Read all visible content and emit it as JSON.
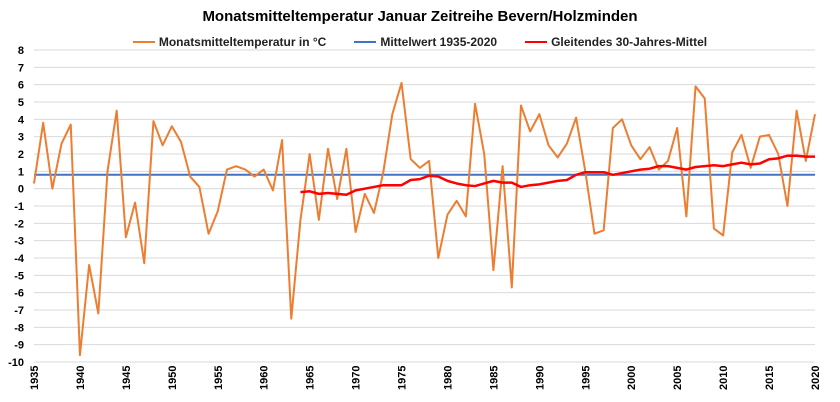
{
  "chart_data": {
    "type": "line",
    "title": "Monatsmitteltemperatur Januar Zeitreihe Bevern/Holzminden",
    "xlabel": "",
    "ylabel": "",
    "ylim": [
      -10,
      8
    ],
    "xlim": [
      1935,
      2020
    ],
    "grid": true,
    "legend_placement": "top",
    "x_ticks": [
      1935,
      1940,
      1945,
      1950,
      1955,
      1960,
      1965,
      1970,
      1975,
      1980,
      1985,
      1990,
      1995,
      2000,
      2005,
      2010,
      2015,
      2020
    ],
    "y_ticks": [
      -10,
      -9,
      -8,
      -7,
      -6,
      -5,
      -4,
      -3,
      -2,
      -1,
      0,
      1,
      2,
      3,
      4,
      5,
      6,
      7,
      8
    ],
    "series": [
      {
        "name": "Monatsmitteltemperatur in °C",
        "color": "#ED7D31",
        "x_start": 1935,
        "values": [
          0.3,
          3.8,
          0.0,
          2.6,
          3.7,
          -9.6,
          -4.4,
          -7.2,
          1.0,
          4.5,
          -2.8,
          -0.8,
          -4.3,
          3.9,
          2.5,
          3.6,
          2.7,
          0.7,
          0.1,
          -2.6,
          -1.3,
          1.1,
          1.3,
          1.1,
          0.7,
          1.1,
          -0.1,
          2.8,
          -7.5,
          -1.8,
          2.0,
          -1.8,
          2.3,
          -0.6,
          2.3,
          -2.5,
          -0.3,
          -1.4,
          0.9,
          4.3,
          6.1,
          1.7,
          1.2,
          1.6,
          -4.0,
          -1.5,
          -0.7,
          -1.6,
          4.9,
          2.0,
          -4.7,
          1.3,
          -5.7,
          4.8,
          3.3,
          4.3,
          2.5,
          1.8,
          2.6,
          4.1,
          1.0,
          -2.6,
          -2.4,
          3.5,
          4.0,
          2.5,
          1.7,
          2.4,
          1.1,
          1.6,
          3.5,
          -1.6,
          5.9,
          5.2,
          -2.3,
          -2.7,
          2.1,
          3.1,
          1.2,
          3.0,
          3.1,
          2.0,
          -1.0,
          4.5,
          1.6,
          4.3
        ]
      },
      {
        "name": "Mittelwert 1935-2020",
        "color": "#4472C4",
        "x_start": 1935,
        "constant": 0.8
      },
      {
        "name": "Gleitendes 30-Jahres-Mittel",
        "color": "#FF0000",
        "x_start": 1964,
        "values": [
          -0.2,
          -0.15,
          -0.3,
          -0.25,
          -0.3,
          -0.35,
          -0.1,
          0.0,
          0.1,
          0.2,
          0.2,
          0.2,
          0.5,
          0.55,
          0.75,
          0.7,
          0.45,
          0.3,
          0.2,
          0.15,
          0.3,
          0.45,
          0.35,
          0.35,
          0.1,
          0.2,
          0.25,
          0.35,
          0.45,
          0.5,
          0.8,
          0.95,
          0.95,
          0.95,
          0.8,
          0.9,
          1.0,
          1.1,
          1.15,
          1.3,
          1.3,
          1.2,
          1.1,
          1.25,
          1.3,
          1.35,
          1.3,
          1.4,
          1.5,
          1.4,
          1.45,
          1.7,
          1.75,
          1.9,
          1.9,
          1.85,
          1.85
        ]
      }
    ]
  }
}
